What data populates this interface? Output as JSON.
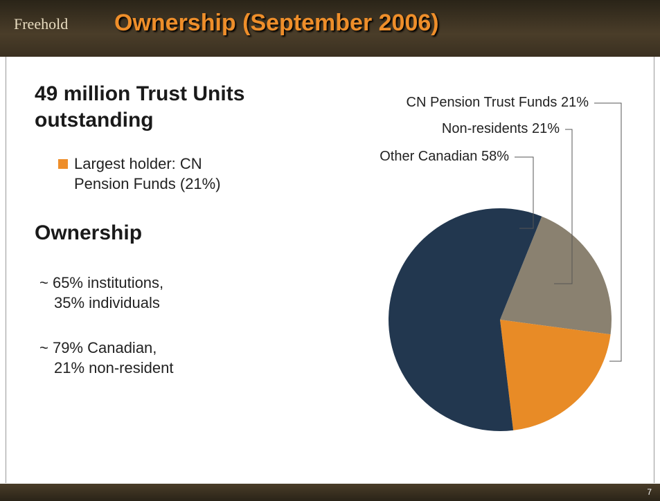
{
  "header": {
    "logo": "Freehold",
    "title": "Ownership (September 2006)"
  },
  "content": {
    "heading1": [
      "49 million Trust Units",
      "outstanding"
    ],
    "bullet1": [
      "Largest holder: CN",
      "Pension Funds (21%)"
    ],
    "heading2": "Ownership",
    "items": [
      [
        "~ 65% institutions,",
        "35% individuals"
      ],
      [
        "~ 79% Canadian,",
        "21% non-resident"
      ]
    ]
  },
  "chart_data": {
    "type": "pie",
    "categories": [
      "Non-residents",
      "CN Pension Trust Funds",
      "Other Canadian"
    ],
    "values": [
      21,
      21,
      58
    ],
    "value_labels": [
      "21%",
      "21%",
      "58%"
    ],
    "colors": [
      "#8a8170",
      "#e88b26",
      "#22374f"
    ]
  },
  "footer": {
    "page": "7"
  }
}
